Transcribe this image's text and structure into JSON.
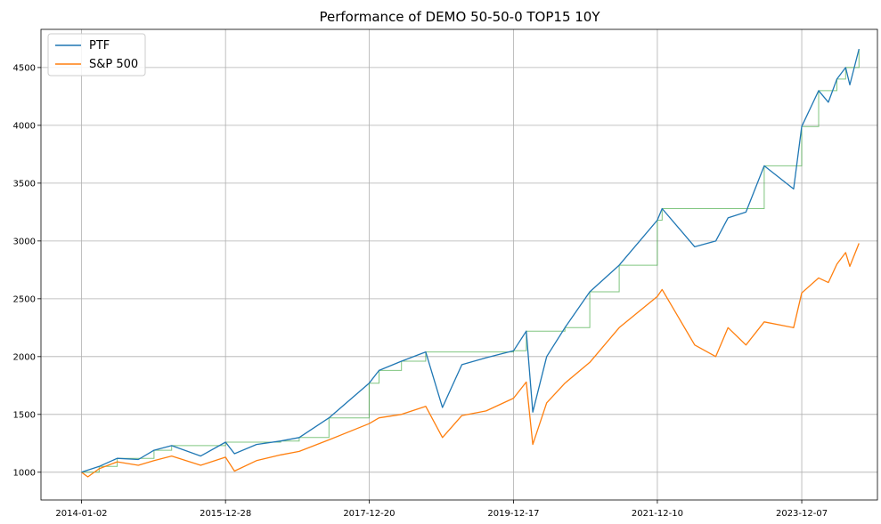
{
  "chart_data": {
    "type": "line",
    "title": "Performance of DEMO 50-50-0 TOP15 10Y",
    "xlabel": "",
    "ylabel": "",
    "x_ticks": [
      "2014-01-02",
      "2015-12-28",
      "2017-12-20",
      "2019-12-17",
      "2021-12-10",
      "2023-12-07"
    ],
    "y_ticks": [
      1000,
      1500,
      2000,
      2500,
      3000,
      3500,
      4000,
      4500
    ],
    "xlim": [
      "2013-06-12",
      "2024-12-22"
    ],
    "ylim": [
      760,
      4830
    ],
    "grid": true,
    "legend_position": "top-left",
    "colors": {
      "PTF": "#1f77b4",
      "S&P 500": "#ff7f0e",
      "high_water": "#2ca02c"
    },
    "series": [
      {
        "name": "PTF",
        "x": [
          "2014-01-02",
          "2014-04-01",
          "2014-07-01",
          "2014-10-15",
          "2015-01-02",
          "2015-04-01",
          "2015-08-25",
          "2015-12-28",
          "2016-02-11",
          "2016-06-01",
          "2016-10-01",
          "2017-01-02",
          "2017-06-01",
          "2017-12-20",
          "2018-02-08",
          "2018-06-01",
          "2018-10-01",
          "2018-12-24",
          "2019-04-01",
          "2019-08-01",
          "2019-12-17",
          "2020-02-19",
          "2020-03-23",
          "2020-06-01",
          "2020-09-01",
          "2021-01-04",
          "2021-06-01",
          "2021-12-10",
          "2022-01-03",
          "2022-06-16",
          "2022-09-30",
          "2022-12-01",
          "2023-03-01",
          "2023-06-01",
          "2023-10-27",
          "2023-12-07",
          "2024-03-01",
          "2024-04-19",
          "2024-06-01",
          "2024-07-15",
          "2024-08-05",
          "2024-09-20"
        ],
        "values": [
          1000,
          1050,
          1120,
          1110,
          1190,
          1230,
          1140,
          1260,
          1160,
          1240,
          1270,
          1300,
          1470,
          1770,
          1880,
          1960,
          2040,
          1560,
          1930,
          1990,
          2050,
          2220,
          1520,
          2000,
          2250,
          2560,
          2790,
          3180,
          3280,
          2950,
          3000,
          3200,
          3250,
          3650,
          3450,
          3990,
          4300,
          4200,
          4400,
          4500,
          4350,
          4660
        ]
      },
      {
        "name": "S&P 500",
        "x": [
          "2014-01-02",
          "2014-02-03",
          "2014-04-01",
          "2014-07-01",
          "2014-10-15",
          "2015-01-02",
          "2015-04-01",
          "2015-08-25",
          "2015-12-28",
          "2016-02-11",
          "2016-06-01",
          "2016-10-01",
          "2017-01-02",
          "2017-06-01",
          "2017-12-20",
          "2018-02-08",
          "2018-06-01",
          "2018-10-01",
          "2018-12-24",
          "2019-04-01",
          "2019-08-01",
          "2019-12-17",
          "2020-02-19",
          "2020-03-23",
          "2020-06-01",
          "2020-09-01",
          "2021-01-04",
          "2021-06-01",
          "2021-12-10",
          "2022-01-03",
          "2022-06-16",
          "2022-09-30",
          "2022-12-01",
          "2023-03-01",
          "2023-06-01",
          "2023-10-27",
          "2023-12-07",
          "2024-03-01",
          "2024-04-19",
          "2024-06-01",
          "2024-07-15",
          "2024-08-05",
          "2024-09-20"
        ],
        "values": [
          1000,
          960,
          1030,
          1090,
          1060,
          1100,
          1140,
          1060,
          1130,
          1010,
          1100,
          1150,
          1180,
          1280,
          1420,
          1470,
          1500,
          1570,
          1300,
          1490,
          1530,
          1640,
          1780,
          1240,
          1600,
          1770,
          1950,
          2250,
          2520,
          2580,
          2100,
          2000,
          2250,
          2100,
          2300,
          2250,
          2550,
          2680,
          2640,
          2800,
          2900,
          2780,
          2980
        ]
      }
    ]
  }
}
